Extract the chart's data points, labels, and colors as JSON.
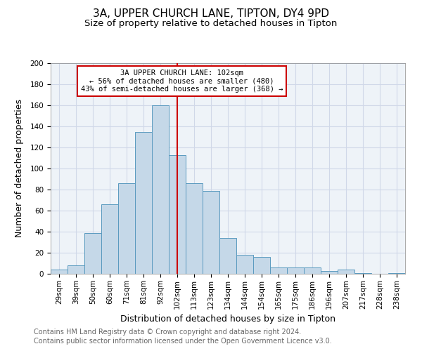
{
  "title": "3A, UPPER CHURCH LANE, TIPTON, DY4 9PD",
  "subtitle": "Size of property relative to detached houses in Tipton",
  "xlabel": "Distribution of detached houses by size in Tipton",
  "ylabel": "Number of detached properties",
  "bar_labels": [
    "29sqm",
    "39sqm",
    "50sqm",
    "60sqm",
    "71sqm",
    "81sqm",
    "92sqm",
    "102sqm",
    "113sqm",
    "123sqm",
    "134sqm",
    "144sqm",
    "154sqm",
    "165sqm",
    "175sqm",
    "186sqm",
    "196sqm",
    "207sqm",
    "217sqm",
    "228sqm",
    "238sqm"
  ],
  "bar_heights": [
    4,
    8,
    39,
    66,
    86,
    135,
    160,
    113,
    86,
    79,
    34,
    18,
    16,
    6,
    6,
    6,
    3,
    4,
    1,
    0,
    1
  ],
  "bar_color": "#c5d8e8",
  "bar_edge_color": "#5a9abf",
  "vline_x_index": 7,
  "vline_color": "#cc0000",
  "annotation_title": "3A UPPER CHURCH LANE: 102sqm",
  "annotation_line1": "← 56% of detached houses are smaller (480)",
  "annotation_line2": "43% of semi-detached houses are larger (368) →",
  "annotation_box_edge_color": "#cc0000",
  "annotation_box_face_color": "#ffffff",
  "ylim": [
    0,
    200
  ],
  "yticks": [
    0,
    20,
    40,
    60,
    80,
    100,
    120,
    140,
    160,
    180,
    200
  ],
  "footer1": "Contains HM Land Registry data © Crown copyright and database right 2024.",
  "footer2": "Contains public sector information licensed under the Open Government Licence v3.0.",
  "background_color": "#ffffff",
  "plot_background_color": "#eef3f8",
  "grid_color": "#d0d8e8",
  "title_fontsize": 11,
  "subtitle_fontsize": 9.5,
  "axis_label_fontsize": 9,
  "tick_fontsize": 7.5,
  "annotation_fontsize": 7.5,
  "footer_fontsize": 7
}
